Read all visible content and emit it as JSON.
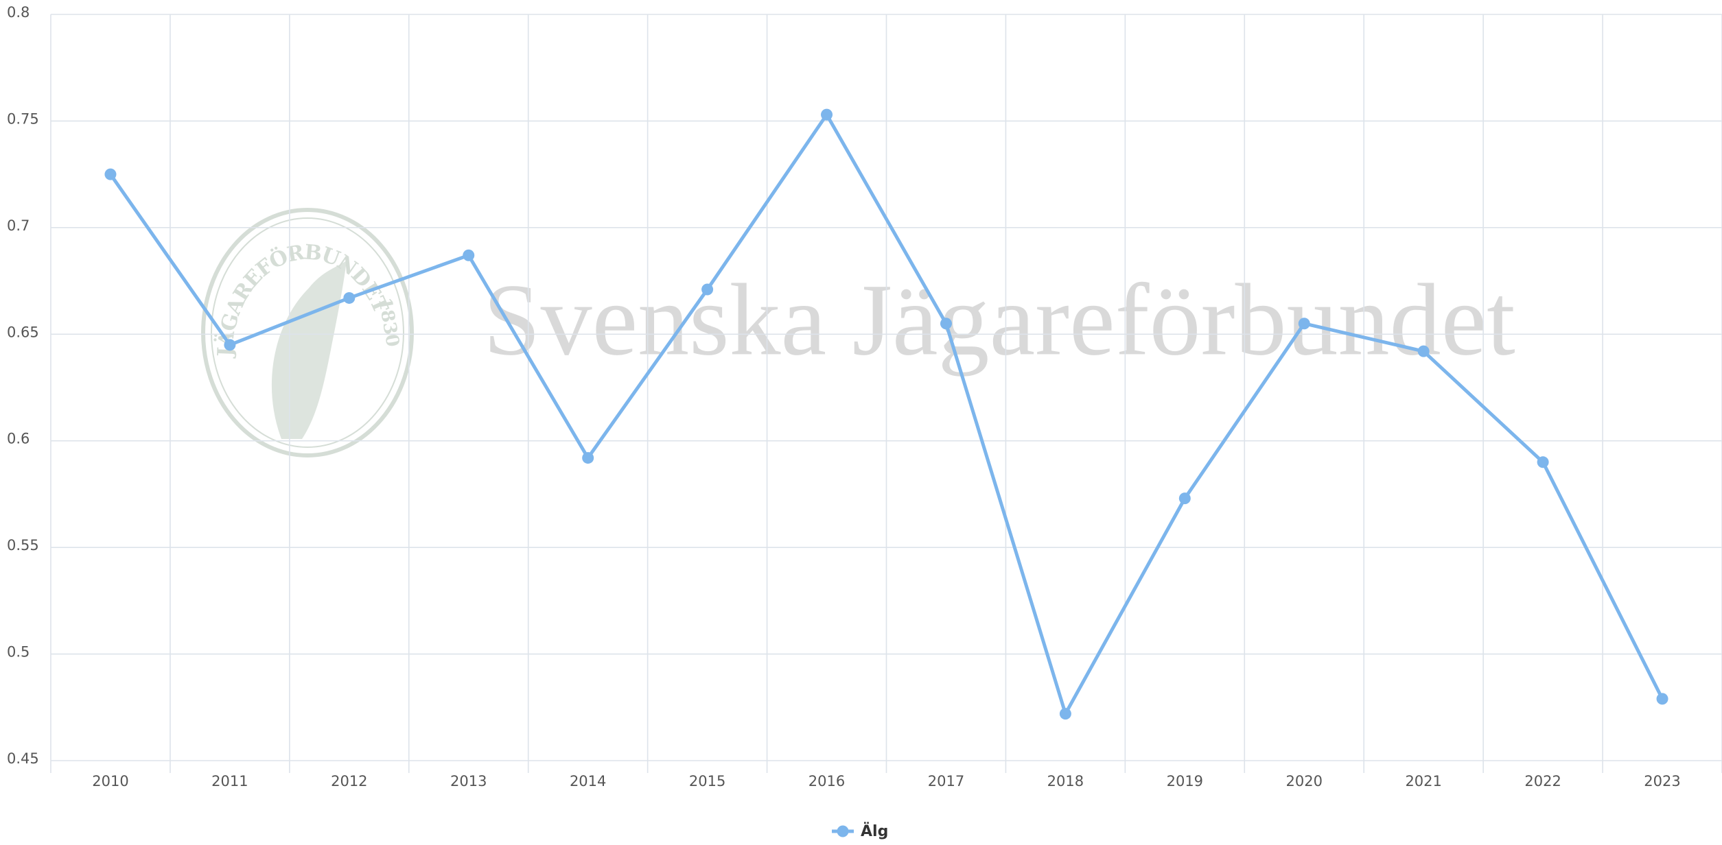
{
  "chart_data": {
    "type": "line",
    "watermark": "Svenska Jägareförbundet",
    "logo_text": "JÄGAREFÖRBUNDET",
    "logo_year": "1830",
    "categories": [
      "2010",
      "2011",
      "2012",
      "2013",
      "2014",
      "2015",
      "2016",
      "2017",
      "2018",
      "2019",
      "2020",
      "2021",
      "2022",
      "2023"
    ],
    "series": [
      {
        "name": "Älg",
        "color": "#7cb5ec",
        "values": [
          0.725,
          0.645,
          0.667,
          0.687,
          0.592,
          0.671,
          0.753,
          0.655,
          0.472,
          0.573,
          0.655,
          0.642,
          0.59,
          0.479
        ]
      }
    ],
    "ylim": [
      0.45,
      0.8
    ],
    "yticks": [
      0.45,
      0.5,
      0.55,
      0.6,
      0.65,
      0.7,
      0.75,
      0.8
    ],
    "grid": true
  }
}
